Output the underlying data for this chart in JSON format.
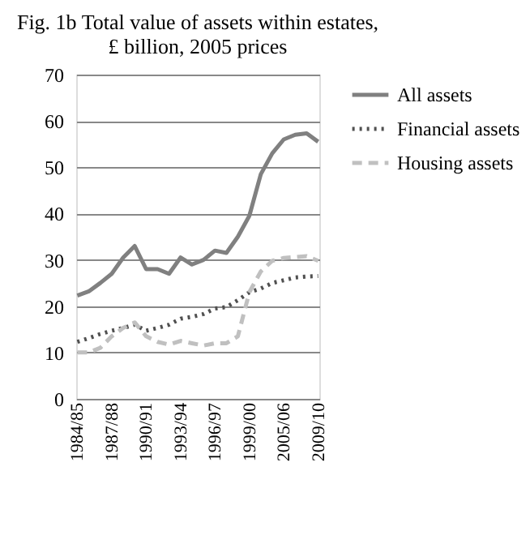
{
  "chart_data": {
    "type": "line",
    "title": "Fig. 1b Total value of assets within estates, £ billion, 2005 prices",
    "categories": [
      "1984/85",
      null,
      null,
      "1987/88",
      null,
      null,
      "1990/91",
      null,
      null,
      "1993/94",
      null,
      null,
      "1996/97",
      null,
      null,
      "1999/00",
      null,
      null,
      "2005/06",
      null,
      null,
      "2009/10"
    ],
    "series": [
      {
        "name": "All assets",
        "color": "#808080",
        "line_style": "solid",
        "values": [
          22.3,
          23.2,
          25,
          27,
          30.5,
          33,
          28,
          28,
          27,
          30.5,
          29,
          30,
          32,
          31.5,
          35,
          39.5,
          48.5,
          53,
          56,
          57,
          57.3,
          55.5
        ]
      },
      {
        "name": "Financial assets",
        "color": "#505050",
        "line_style": "dotted",
        "values": [
          12.3,
          13.1,
          14,
          14.7,
          15.3,
          16,
          14.7,
          15.3,
          16,
          17.3,
          17.7,
          18.3,
          19.5,
          19.8,
          21.3,
          23,
          23.8,
          25,
          25.6,
          26.2,
          26.4,
          26.5
        ]
      },
      {
        "name": "Housing assets",
        "color": "#c0c0c0",
        "line_style": "dashed",
        "values": [
          10,
          10,
          11,
          13.5,
          15.3,
          16.5,
          13.5,
          12.3,
          11.7,
          12.5,
          12,
          11.5,
          12,
          12,
          13.5,
          23,
          27.5,
          29.8,
          30.4,
          30.6,
          30.8,
          29.8
        ]
      }
    ],
    "ylim": [
      0,
      70
    ],
    "yticks": [
      0,
      10,
      20,
      30,
      40,
      50,
      60,
      70
    ],
    "grid": "y",
    "legend": "right"
  }
}
